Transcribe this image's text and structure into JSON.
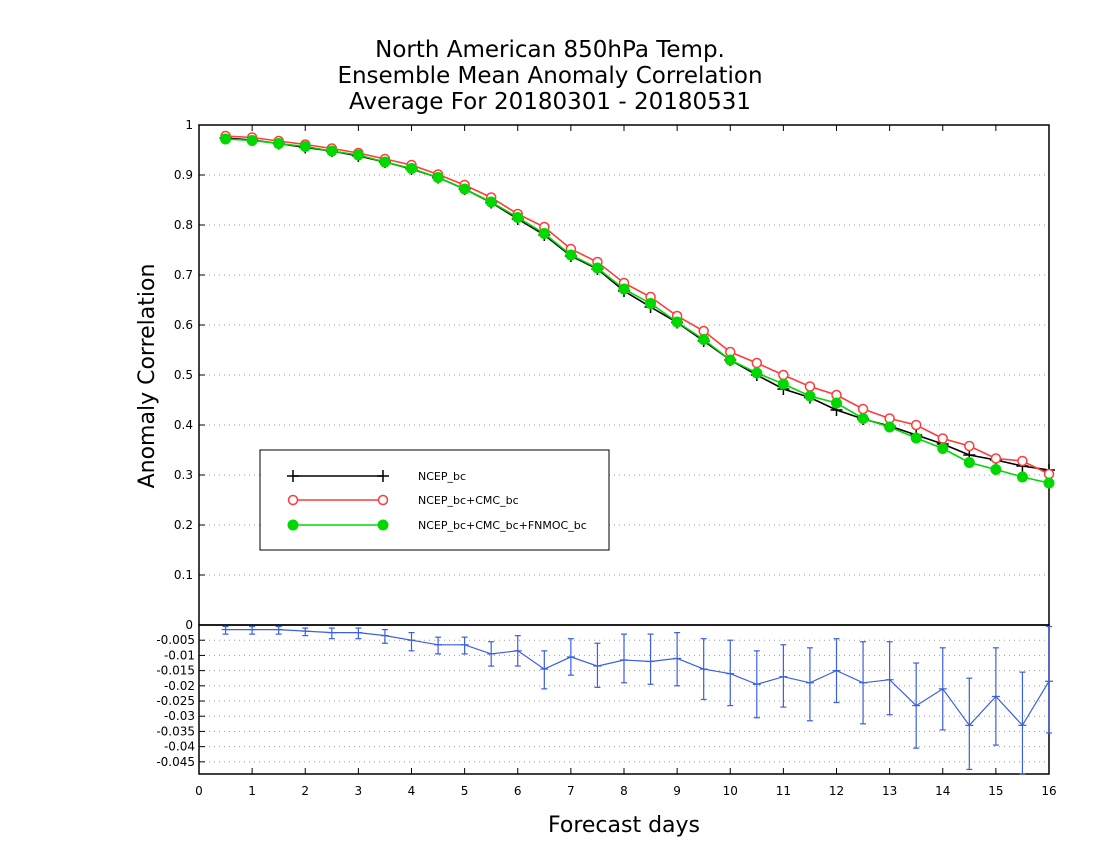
{
  "title": {
    "line1": "North American 850hPa Temp.",
    "line2": "Ensemble Mean Anomaly Correlation",
    "line3": "Average For 20180301 - 20180531"
  },
  "colors": {
    "ncep": "#000000",
    "ncep_cmc": "#ff3b3b",
    "ncep_cmc_fnmoc": "#00d800",
    "diff": "#3a5fe0"
  },
  "chart_data": [
    {
      "type": "line",
      "title": "North American 850hPa Temp. Ensemble Mean Anomaly Correlation Average For 20180301 - 20180531",
      "xlabel": "Forecast days",
      "ylabel": "Anomaly Correlation",
      "xlim": [
        0,
        16
      ],
      "ylim": [
        0,
        1
      ],
      "x_ticks": [
        "0",
        "1",
        "2",
        "3",
        "4",
        "5",
        "6",
        "7",
        "8",
        "9",
        "10",
        "11",
        "12",
        "13",
        "14",
        "15",
        "16"
      ],
      "y_ticks": [
        "0",
        "0.1",
        "0.2",
        "0.3",
        "0.4",
        "0.5",
        "0.6",
        "0.7",
        "0.8",
        "0.9",
        "1"
      ],
      "grid": "horizontal dotted",
      "legend_position": "left",
      "x": [
        0.5,
        1,
        1.5,
        2,
        2.5,
        3,
        3.5,
        4,
        4.5,
        5,
        5.5,
        6,
        6.5,
        7,
        7.5,
        8,
        8.5,
        9,
        9.5,
        10,
        10.5,
        11,
        11.5,
        12,
        12.5,
        13,
        13.5,
        14,
        14.5,
        15,
        15.5,
        16
      ],
      "series": [
        {
          "name": "NCEP_bc",
          "marker": "plus",
          "values": [
            0.974,
            0.97,
            0.963,
            0.955,
            0.948,
            0.938,
            0.926,
            0.912,
            0.895,
            0.872,
            0.845,
            0.812,
            0.78,
            0.738,
            0.712,
            0.668,
            0.636,
            0.605,
            0.568,
            0.53,
            0.5,
            0.472,
            0.455,
            0.43,
            0.412,
            0.398,
            0.38,
            0.362,
            0.34,
            0.33,
            0.318,
            0.31
          ]
        },
        {
          "name": "NCEP_bc+CMC_bc",
          "marker": "open-circle",
          "values": [
            0.978,
            0.975,
            0.968,
            0.961,
            0.953,
            0.944,
            0.932,
            0.92,
            0.901,
            0.88,
            0.855,
            0.822,
            0.796,
            0.752,
            0.726,
            0.684,
            0.656,
            0.618,
            0.588,
            0.546,
            0.524,
            0.5,
            0.477,
            0.46,
            0.432,
            0.413,
            0.4,
            0.373,
            0.358,
            0.333,
            0.328,
            0.302
          ]
        },
        {
          "name": "NCEP_bc+CMC_bc+FNMOC_bc",
          "marker": "filled-circle",
          "values": [
            0.972,
            0.969,
            0.963,
            0.957,
            0.948,
            0.94,
            0.926,
            0.913,
            0.895,
            0.872,
            0.846,
            0.815,
            0.783,
            0.74,
            0.714,
            0.672,
            0.643,
            0.606,
            0.571,
            0.53,
            0.504,
            0.482,
            0.458,
            0.444,
            0.413,
            0.396,
            0.374,
            0.353,
            0.325,
            0.311,
            0.296,
            0.284
          ]
        }
      ]
    },
    {
      "type": "line",
      "title": "",
      "xlabel": "Forecast days",
      "ylabel": "",
      "xlim": [
        0,
        16
      ],
      "ylim": [
        -0.049,
        0
      ],
      "y_ticks": [
        "0",
        "-0.005",
        "-0.01",
        "-0.015",
        "-0.02",
        "-0.025",
        "-0.03",
        "-0.035",
        "-0.04",
        "-0.045"
      ],
      "x": [
        0.5,
        1,
        1.5,
        2,
        2.5,
        3,
        3.5,
        4,
        4.5,
        5,
        5.5,
        6,
        6.5,
        7,
        7.5,
        8,
        8.5,
        9,
        9.5,
        10,
        10.5,
        11,
        11.5,
        12,
        12.5,
        13,
        13.5,
        14,
        14.5,
        15,
        15.5,
        16
      ],
      "series": [
        {
          "name": "",
          "values": [
            -0.0015,
            -0.0015,
            -0.0015,
            -0.002,
            -0.0025,
            -0.0025,
            -0.0035,
            -0.005,
            -0.0065,
            -0.0065,
            -0.0095,
            -0.0085,
            -0.0145,
            -0.0105,
            -0.0135,
            -0.0115,
            -0.012,
            -0.011,
            -0.0145,
            -0.016,
            -0.0195,
            -0.017,
            -0.019,
            -0.015,
            -0.019,
            -0.018,
            -0.0265,
            -0.021,
            -0.033,
            -0.0235,
            -0.033,
            -0.0185
          ],
          "error_low": [
            -0.003,
            -0.003,
            -0.003,
            -0.0035,
            -0.0045,
            -0.0045,
            -0.006,
            -0.0085,
            -0.0095,
            -0.0095,
            -0.0135,
            -0.0135,
            -0.021,
            -0.0165,
            -0.0205,
            -0.019,
            -0.0195,
            -0.02,
            -0.0245,
            -0.0265,
            -0.0305,
            -0.027,
            -0.0315,
            -0.0255,
            -0.0325,
            -0.0295,
            -0.0405,
            -0.0345,
            -0.0475,
            -0.0395,
            -0.049,
            -0.0355
          ],
          "error_high": [
            -0.0005,
            -0.0005,
            -0.0005,
            -0.001,
            -0.001,
            -0.001,
            -0.0015,
            -0.0025,
            -0.004,
            -0.004,
            -0.0055,
            -0.0035,
            -0.0085,
            -0.0045,
            -0.006,
            -0.003,
            -0.003,
            -0.0025,
            -0.0045,
            -0.005,
            -0.0085,
            -0.0065,
            -0.0075,
            -0.0045,
            -0.0055,
            -0.0055,
            -0.0125,
            -0.0075,
            -0.0175,
            -0.0075,
            -0.0155,
            -0.0005
          ]
        }
      ]
    }
  ]
}
